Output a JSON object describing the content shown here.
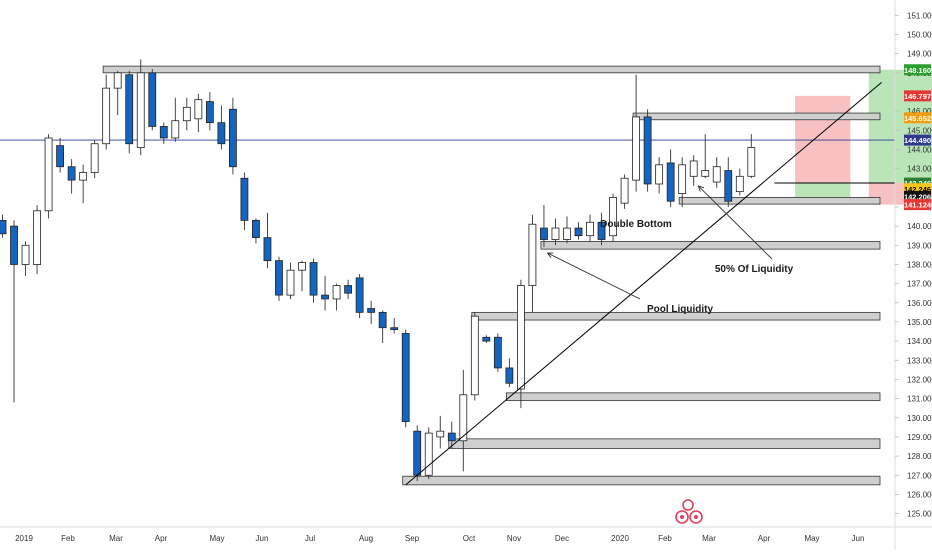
{
  "chart_data": {
    "type": "candlestick",
    "x_tick_labels": [
      "2019",
      "Feb",
      "Mar",
      "Apr",
      "May",
      "Jun",
      "Jul",
      "Aug",
      "Sep",
      "Oct",
      "Nov",
      "Dec",
      "2020",
      "Feb",
      "Mar",
      "Apr",
      "May",
      "Jun"
    ],
    "y_tick_labels": [
      "151.000",
      "150.000",
      "149.000",
      "148.000",
      "146.000",
      "145.000",
      "144.000",
      "143.000",
      "141.000",
      "140.000",
      "139.000",
      "138.000",
      "137.000",
      "136.000",
      "135.000",
      "134.000",
      "133.000",
      "132.000",
      "131.000",
      "130.000",
      "129.000",
      "128.000",
      "127.000",
      "126.000",
      "125.000"
    ],
    "ylim": [
      124.3,
      151.8
    ],
    "grid": false,
    "colors": {
      "up_body": "#ffffff",
      "down_body": "#1565c0",
      "candle_border": "#222222",
      "zone_fill": "#cfcfcf",
      "trendline": "#000000",
      "current_price_line": "#2f3a8f",
      "profit_zone": "#7fd07f",
      "loss_zone": "#f4a0a0"
    },
    "price_tags": [
      {
        "label": "148.160",
        "value": 148.16,
        "color": "#2e9e2e"
      },
      {
        "label": "146.797",
        "value": 146.797,
        "color": "#e53935"
      },
      {
        "label": "145.652",
        "value": 145.652,
        "color": "#f39c12"
      },
      {
        "label": "144.490",
        "value": 144.49,
        "color": "#2f3a8f"
      },
      {
        "label": "142.246",
        "value": 142.246,
        "color": "#2e7d32"
      },
      {
        "label": "142.246",
        "value": 141.95,
        "color": "#f5c518",
        "text_color": "#000000"
      },
      {
        "label": "142.206",
        "value": 141.55,
        "color": "#111111"
      },
      {
        "label": "141.124",
        "value": 141.124,
        "color": "#e53935"
      }
    ],
    "candles": [
      {
        "o": 140.3,
        "h": 140.6,
        "l": 139.4,
        "c": 139.6
      },
      {
        "o": 140.0,
        "h": 140.3,
        "l": 130.8,
        "c": 138.0
      },
      {
        "o": 138.0,
        "h": 139.2,
        "l": 137.4,
        "c": 139.0
      },
      {
        "o": 138.0,
        "h": 141.1,
        "l": 137.5,
        "c": 140.8
      },
      {
        "o": 140.8,
        "h": 144.8,
        "l": 140.4,
        "c": 144.6
      },
      {
        "o": 144.2,
        "h": 144.6,
        "l": 142.8,
        "c": 143.1
      },
      {
        "o": 143.1,
        "h": 143.5,
        "l": 141.7,
        "c": 142.4
      },
      {
        "o": 142.4,
        "h": 143.2,
        "l": 141.2,
        "c": 142.8
      },
      {
        "o": 142.8,
        "h": 144.5,
        "l": 142.5,
        "c": 144.3
      },
      {
        "o": 144.3,
        "h": 147.9,
        "l": 144.0,
        "c": 147.2
      },
      {
        "o": 147.2,
        "h": 148.1,
        "l": 145.8,
        "c": 148.0
      },
      {
        "o": 147.9,
        "h": 148.1,
        "l": 143.8,
        "c": 144.3
      },
      {
        "o": 144.1,
        "h": 148.7,
        "l": 143.7,
        "c": 148.0
      },
      {
        "o": 148.0,
        "h": 148.2,
        "l": 145.0,
        "c": 145.2
      },
      {
        "o": 145.2,
        "h": 145.4,
        "l": 144.3,
        "c": 144.6
      },
      {
        "o": 144.6,
        "h": 146.7,
        "l": 144.4,
        "c": 145.5
      },
      {
        "o": 145.5,
        "h": 146.7,
        "l": 145.0,
        "c": 146.2
      },
      {
        "o": 145.6,
        "h": 146.9,
        "l": 144.9,
        "c": 146.6
      },
      {
        "o": 146.5,
        "h": 147.0,
        "l": 145.0,
        "c": 145.4
      },
      {
        "o": 145.4,
        "h": 146.3,
        "l": 144.0,
        "c": 144.3
      },
      {
        "o": 146.1,
        "h": 146.7,
        "l": 142.7,
        "c": 143.1
      },
      {
        "o": 142.5,
        "h": 142.8,
        "l": 139.8,
        "c": 140.3
      },
      {
        "o": 140.3,
        "h": 140.4,
        "l": 139.1,
        "c": 139.4
      },
      {
        "o": 139.4,
        "h": 140.7,
        "l": 137.8,
        "c": 138.2
      },
      {
        "o": 138.2,
        "h": 138.4,
        "l": 136.1,
        "c": 136.4
      },
      {
        "o": 136.4,
        "h": 138.1,
        "l": 136.2,
        "c": 137.7
      },
      {
        "o": 137.7,
        "h": 138.2,
        "l": 136.6,
        "c": 138.1
      },
      {
        "o": 138.1,
        "h": 138.3,
        "l": 136.0,
        "c": 136.4
      },
      {
        "o": 136.4,
        "h": 137.4,
        "l": 135.6,
        "c": 136.2
      },
      {
        "o": 136.2,
        "h": 137.0,
        "l": 135.6,
        "c": 136.9
      },
      {
        "o": 136.9,
        "h": 137.2,
        "l": 136.2,
        "c": 136.5
      },
      {
        "o": 137.3,
        "h": 137.5,
        "l": 135.2,
        "c": 135.5
      },
      {
        "o": 135.7,
        "h": 136.1,
        "l": 134.9,
        "c": 135.5
      },
      {
        "o": 135.5,
        "h": 135.6,
        "l": 133.9,
        "c": 134.7
      },
      {
        "o": 134.7,
        "h": 135.2,
        "l": 134.4,
        "c": 134.6
      },
      {
        "o": 134.4,
        "h": 134.6,
        "l": 129.5,
        "c": 129.8
      },
      {
        "o": 129.3,
        "h": 129.6,
        "l": 126.7,
        "c": 127.0
      },
      {
        "o": 127.0,
        "h": 129.5,
        "l": 126.8,
        "c": 129.2
      },
      {
        "o": 129.0,
        "h": 130.1,
        "l": 128.4,
        "c": 129.3
      },
      {
        "o": 129.2,
        "h": 129.8,
        "l": 128.4,
        "c": 128.8
      },
      {
        "o": 128.8,
        "h": 132.5,
        "l": 127.2,
        "c": 131.2
      },
      {
        "o": 131.2,
        "h": 135.5,
        "l": 130.9,
        "c": 135.3
      },
      {
        "o": 134.2,
        "h": 134.3,
        "l": 133.9,
        "c": 134.0
      },
      {
        "o": 134.2,
        "h": 134.4,
        "l": 132.4,
        "c": 132.6
      },
      {
        "o": 132.6,
        "h": 133.1,
        "l": 131.6,
        "c": 131.8
      },
      {
        "o": 131.5,
        "h": 137.2,
        "l": 130.5,
        "c": 136.9
      },
      {
        "o": 136.9,
        "h": 140.6,
        "l": 135.5,
        "c": 140.1
      },
      {
        "o": 139.9,
        "h": 141.1,
        "l": 138.9,
        "c": 139.3
      },
      {
        "o": 139.3,
        "h": 140.4,
        "l": 139.0,
        "c": 139.9
      },
      {
        "o": 139.3,
        "h": 140.5,
        "l": 139.1,
        "c": 139.9
      },
      {
        "o": 139.9,
        "h": 140.2,
        "l": 139.3,
        "c": 139.5
      },
      {
        "o": 139.5,
        "h": 140.6,
        "l": 139.2,
        "c": 140.2
      },
      {
        "o": 140.2,
        "h": 140.7,
        "l": 139.0,
        "c": 139.3
      },
      {
        "o": 139.5,
        "h": 141.7,
        "l": 139.2,
        "c": 141.5
      },
      {
        "o": 141.2,
        "h": 142.7,
        "l": 140.9,
        "c": 142.5
      },
      {
        "o": 142.4,
        "h": 147.9,
        "l": 141.8,
        "c": 145.7
      },
      {
        "o": 145.7,
        "h": 146.1,
        "l": 141.8,
        "c": 142.2
      },
      {
        "o": 142.2,
        "h": 143.6,
        "l": 141.7,
        "c": 143.2
      },
      {
        "o": 143.3,
        "h": 144.0,
        "l": 141.0,
        "c": 141.3
      },
      {
        "o": 141.7,
        "h": 143.6,
        "l": 141.0,
        "c": 143.2
      },
      {
        "o": 142.6,
        "h": 143.7,
        "l": 142.1,
        "c": 143.4
      },
      {
        "o": 142.6,
        "h": 144.8,
        "l": 142.5,
        "c": 142.9
      },
      {
        "o": 142.3,
        "h": 143.6,
        "l": 142.0,
        "c": 143.1
      },
      {
        "o": 142.9,
        "h": 143.6,
        "l": 141.0,
        "c": 141.3
      },
      {
        "o": 141.8,
        "h": 143.0,
        "l": 141.6,
        "c": 142.6
      },
      {
        "o": 142.6,
        "h": 144.8,
        "l": 142.5,
        "c": 144.1
      }
    ],
    "zones": [
      {
        "start": 9,
        "y1": 148.35,
        "y2": 148.0
      },
      {
        "start": 55,
        "y1": 145.9,
        "y2": 145.55
      },
      {
        "start": 59,
        "y1": 141.5,
        "y2": 141.15
      },
      {
        "start": 47,
        "y1": 139.2,
        "y2": 138.8
      },
      {
        "start": 41,
        "y1": 135.5,
        "y2": 135.1
      },
      {
        "start": 44,
        "y1": 131.3,
        "y2": 130.9
      },
      {
        "start": 39,
        "y1": 128.9,
        "y2": 128.4
      },
      {
        "start": 35,
        "y1": 126.95,
        "y2": 126.5
      }
    ],
    "trendline": {
      "start_candle": 35,
      "start_price": 126.5,
      "end_x_frac": 0.985,
      "end_price": 147.5
    },
    "current_price_level": 144.49,
    "position_boxes": [
      {
        "entry": 142.25,
        "stop": 146.797,
        "target": 141.124,
        "from": 68.8,
        "to": 73.6
      },
      {
        "entry": 142.25,
        "stop": 141.124,
        "target": 148.16,
        "from": 75.2,
        "to": 82.3
      }
    ],
    "marker_line": {
      "price": 142.25,
      "from_candle": 67
    }
  },
  "annotations": {
    "double_bottom": "Double Bottom",
    "pool_liquidity": "Pool Liquidity",
    "fifty_liquidity": "50% Of Liquidity"
  }
}
